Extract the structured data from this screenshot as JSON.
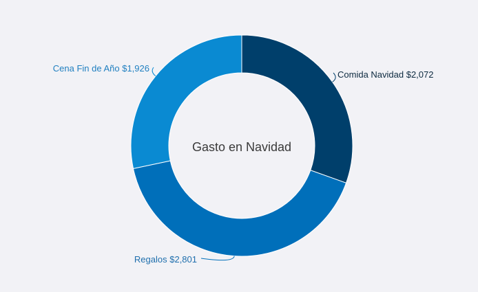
{
  "chart_data": {
    "type": "pie",
    "title": "Gasto en Navidad",
    "series": [
      {
        "name": "Comida Navidad",
        "value": 2072,
        "display": "$2,072",
        "color": "#003f6b"
      },
      {
        "name": "Regalos",
        "value": 2801,
        "display": "$2,801",
        "color": "#006fba"
      },
      {
        "name": "Cena Fin de Año",
        "value": 1926,
        "display": "$1,926",
        "color": "#0a8ad2"
      }
    ],
    "label_colors": [
      "#0d2a40",
      "#1f6fad",
      "#1f7fc0"
    ]
  }
}
